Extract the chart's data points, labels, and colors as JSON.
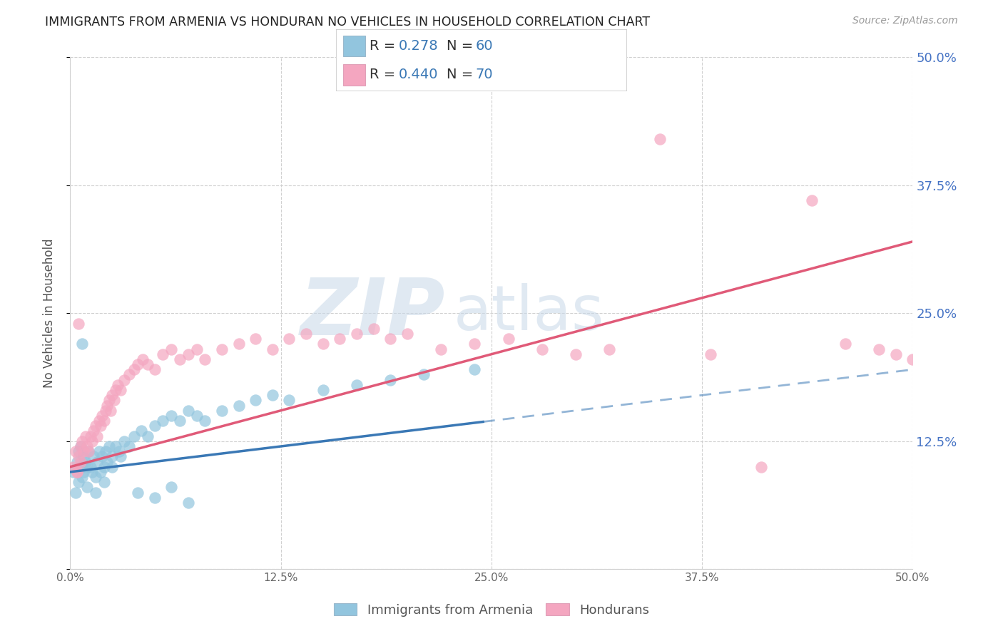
{
  "title": "IMMIGRANTS FROM ARMENIA VS HONDURAN NO VEHICLES IN HOUSEHOLD CORRELATION CHART",
  "source": "Source: ZipAtlas.com",
  "ylabel": "No Vehicles in Household",
  "x_min": 0.0,
  "x_max": 0.5,
  "y_min": 0.0,
  "y_max": 0.5,
  "armenia_R": 0.278,
  "armenia_N": 60,
  "honduran_R": 0.44,
  "honduran_N": 70,
  "legend_label_1": "Immigrants from Armenia",
  "legend_label_2": "Hondurans",
  "blue_color": "#92c5de",
  "pink_color": "#f4a6c0",
  "blue_line_color": "#3a78b5",
  "pink_line_color": "#e05a78",
  "y_ticks": [
    0.0,
    0.125,
    0.25,
    0.375,
    0.5
  ],
  "x_ticks": [
    0.0,
    0.125,
    0.25,
    0.375,
    0.5
  ],
  "y_tick_labels_right": [
    "12.5%",
    "25.0%",
    "37.5%",
    "50.0%"
  ],
  "x_tick_labels": [
    "0.0%",
    "12.5%",
    "25.0%",
    "37.5%",
    "50.0%"
  ],
  "legend_text_color": "#3a78b5",
  "grid_color": "#d0d0d0",
  "arm_x": [
    0.002,
    0.003,
    0.004,
    0.005,
    0.005,
    0.006,
    0.007,
    0.007,
    0.008,
    0.008,
    0.009,
    0.01,
    0.011,
    0.012,
    0.013,
    0.014,
    0.015,
    0.016,
    0.017,
    0.018,
    0.019,
    0.02,
    0.021,
    0.022,
    0.023,
    0.025,
    0.027,
    0.029,
    0.032,
    0.035,
    0.038,
    0.042,
    0.046,
    0.05,
    0.055,
    0.06,
    0.065,
    0.07,
    0.075,
    0.08,
    0.09,
    0.1,
    0.11,
    0.12,
    0.13,
    0.15,
    0.17,
    0.19,
    0.21,
    0.24,
    0.007,
    0.01,
    0.015,
    0.02,
    0.025,
    0.03,
    0.04,
    0.05,
    0.06,
    0.07
  ],
  "arm_y": [
    0.095,
    0.075,
    0.105,
    0.115,
    0.085,
    0.12,
    0.09,
    0.1,
    0.11,
    0.095,
    0.105,
    0.1,
    0.115,
    0.1,
    0.095,
    0.11,
    0.09,
    0.105,
    0.115,
    0.095,
    0.11,
    0.1,
    0.115,
    0.105,
    0.12,
    0.11,
    0.12,
    0.115,
    0.125,
    0.12,
    0.13,
    0.135,
    0.13,
    0.14,
    0.145,
    0.15,
    0.145,
    0.155,
    0.15,
    0.145,
    0.155,
    0.16,
    0.165,
    0.17,
    0.165,
    0.175,
    0.18,
    0.185,
    0.19,
    0.195,
    0.22,
    0.08,
    0.075,
    0.085,
    0.1,
    0.11,
    0.075,
    0.07,
    0.08,
    0.065
  ],
  "hon_x": [
    0.002,
    0.003,
    0.004,
    0.005,
    0.005,
    0.006,
    0.007,
    0.008,
    0.009,
    0.01,
    0.011,
    0.012,
    0.013,
    0.014,
    0.015,
    0.016,
    0.017,
    0.018,
    0.019,
    0.02,
    0.021,
    0.022,
    0.023,
    0.024,
    0.025,
    0.026,
    0.027,
    0.028,
    0.03,
    0.032,
    0.035,
    0.038,
    0.04,
    0.043,
    0.046,
    0.05,
    0.055,
    0.06,
    0.065,
    0.07,
    0.075,
    0.08,
    0.09,
    0.1,
    0.11,
    0.12,
    0.13,
    0.14,
    0.15,
    0.16,
    0.17,
    0.18,
    0.19,
    0.2,
    0.22,
    0.24,
    0.26,
    0.28,
    0.3,
    0.32,
    0.35,
    0.38,
    0.41,
    0.44,
    0.46,
    0.48,
    0.49,
    0.5,
    0.004,
    0.006
  ],
  "hon_y": [
    0.1,
    0.115,
    0.095,
    0.24,
    0.11,
    0.12,
    0.125,
    0.115,
    0.13,
    0.12,
    0.115,
    0.13,
    0.125,
    0.135,
    0.14,
    0.13,
    0.145,
    0.14,
    0.15,
    0.145,
    0.155,
    0.16,
    0.165,
    0.155,
    0.17,
    0.165,
    0.175,
    0.18,
    0.175,
    0.185,
    0.19,
    0.195,
    0.2,
    0.205,
    0.2,
    0.195,
    0.21,
    0.215,
    0.205,
    0.21,
    0.215,
    0.205,
    0.215,
    0.22,
    0.225,
    0.215,
    0.225,
    0.23,
    0.22,
    0.225,
    0.23,
    0.235,
    0.225,
    0.23,
    0.215,
    0.22,
    0.225,
    0.215,
    0.21,
    0.215,
    0.42,
    0.21,
    0.1,
    0.36,
    0.22,
    0.215,
    0.21,
    0.205,
    0.095,
    0.105
  ]
}
